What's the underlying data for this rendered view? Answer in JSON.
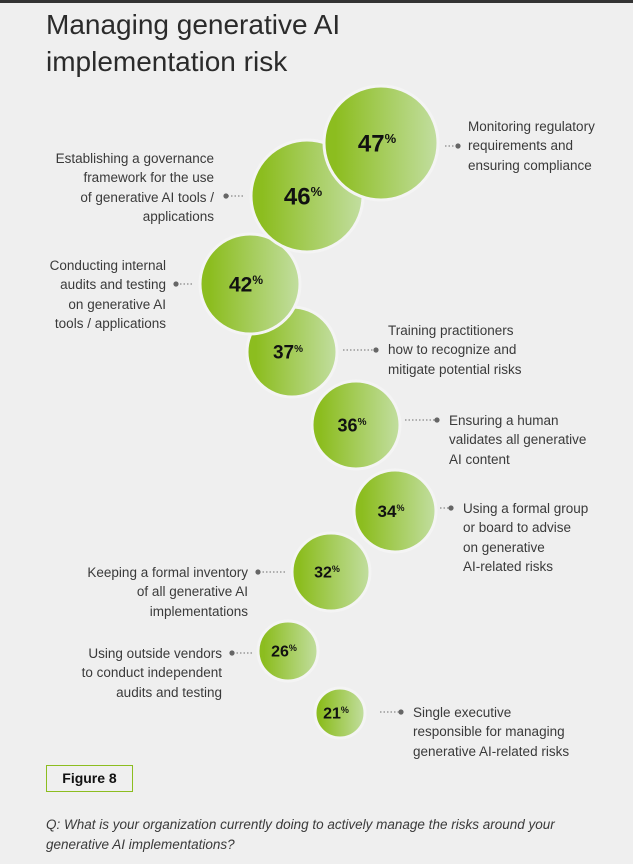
{
  "title": "Managing generative AI implementation risk",
  "figure_label": "Figure 8",
  "question": "Q: What is your organization currently doing to actively manage the risks around your generative AI implementations?",
  "colors": {
    "bubble_dark": "#8cbd1f",
    "bubble_light": "#c2dea0",
    "figure_border": "#8cbd1f"
  },
  "chart_data": {
    "type": "bubble",
    "unit": "%",
    "items": [
      {
        "value": 47,
        "label": "Monitoring regulatory\nrequirements and\nensuring compliance"
      },
      {
        "value": 46,
        "label": "Establishing a governance\nframework for the use\nof generative AI tools /\napplications"
      },
      {
        "value": 42,
        "label": "Conducting internal\naudits and testing\non generative AI\ntools / applications"
      },
      {
        "value": 37,
        "label": "Training practitioners\nhow to recognize and\nmitigate potential risks"
      },
      {
        "value": 36,
        "label": "Ensuring a human\nvalidates all generative\nAI content"
      },
      {
        "value": 34,
        "label": "Using a formal group\nor board to advise\non generative\nAI-related risks"
      },
      {
        "value": 32,
        "label": "Keeping a formal inventory\nof all generative AI\nimplementations"
      },
      {
        "value": 26,
        "label": "Using outside vendors\nto conduct independent\naudits and testing"
      },
      {
        "value": 21,
        "label": "Single executive\nresponsible for managing\ngenerative AI-related risks"
      }
    ]
  }
}
